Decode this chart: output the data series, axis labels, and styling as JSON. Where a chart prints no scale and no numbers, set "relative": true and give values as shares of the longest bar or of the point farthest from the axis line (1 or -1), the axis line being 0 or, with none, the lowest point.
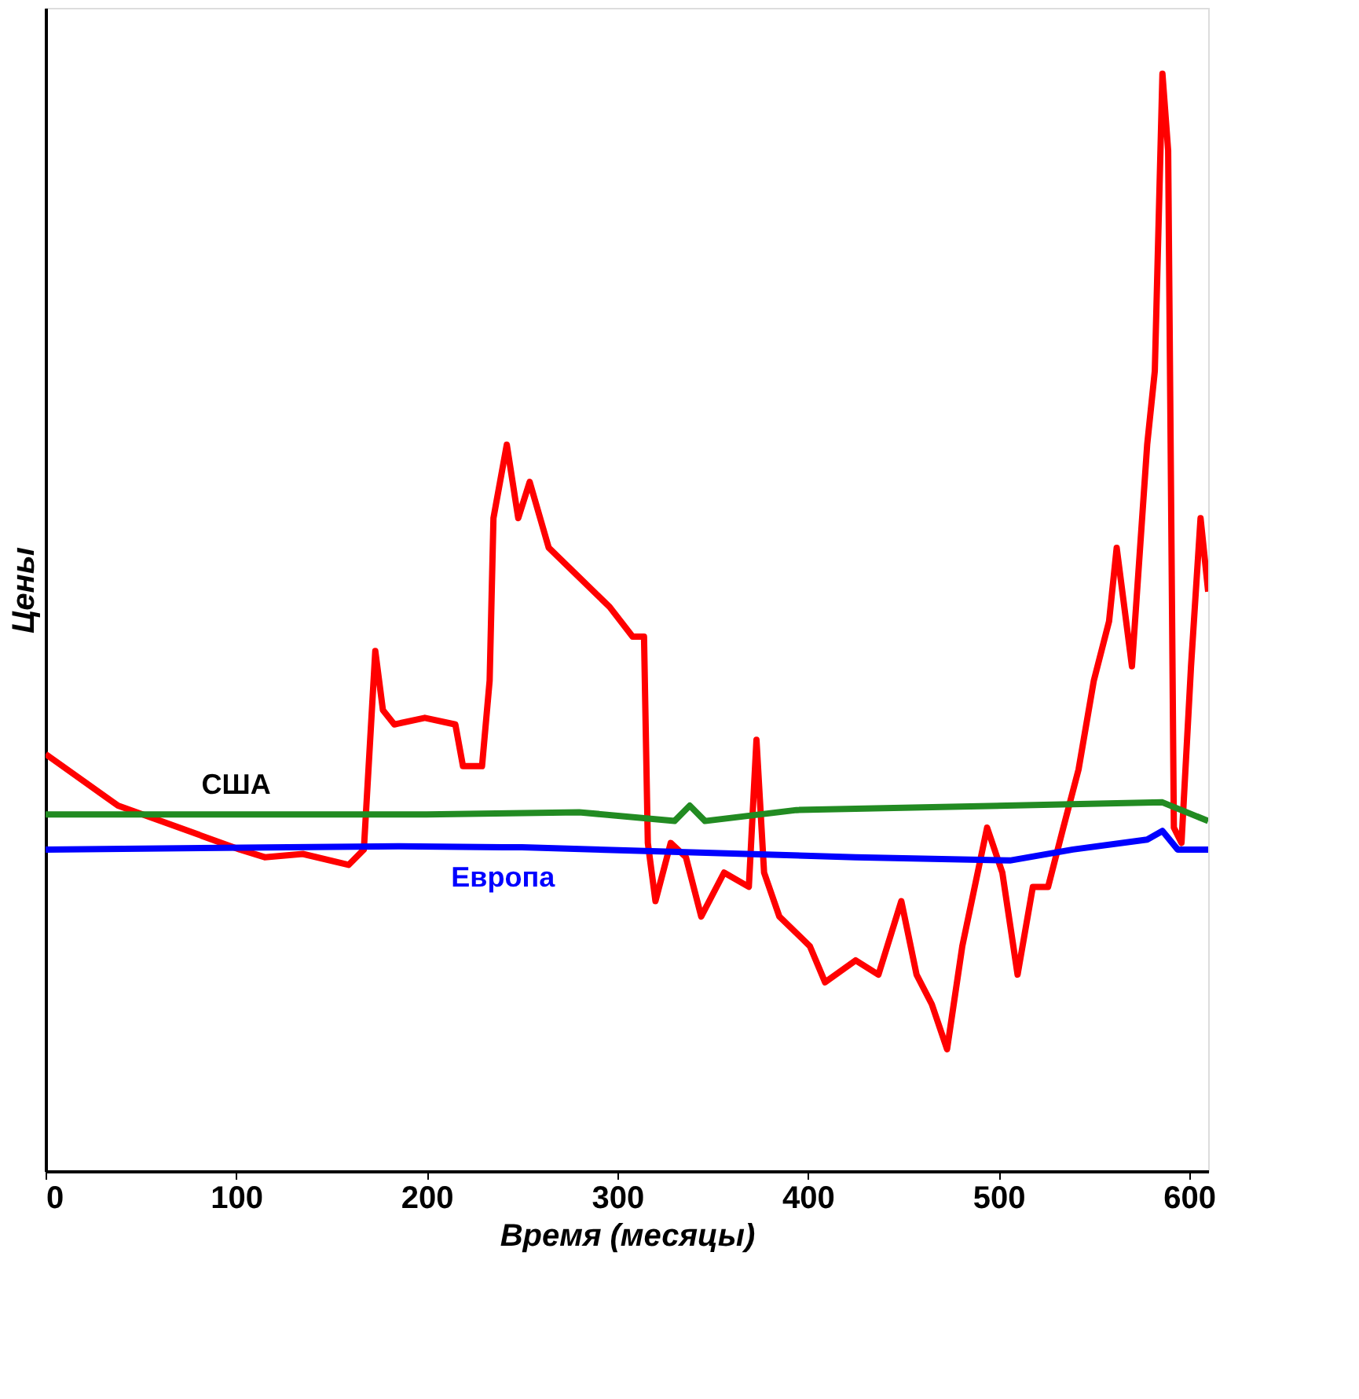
{
  "chart_data": {
    "type": "line",
    "xlabel": "Время (месяцы)",
    "ylabel": "Цены",
    "relative": true,
    "grid": false,
    "legend": false,
    "xlim": [
      0,
      610
    ],
    "xticks": [
      0,
      100,
      200,
      300,
      400,
      500,
      600
    ],
    "series": [
      {
        "color": "#ff0000",
        "x": [
          0,
          38,
          102,
          115,
          135,
          159,
          167,
          173,
          177,
          183,
          199,
          215,
          219,
          229,
          233,
          235,
          242,
          248,
          254,
          264,
          280,
          296,
          308,
          314,
          316,
          320,
          328,
          336,
          344,
          356,
          369,
          373,
          377,
          385,
          401,
          409,
          425,
          437,
          449,
          457,
          465,
          473,
          481,
          494,
          502,
          510,
          518,
          526,
          534,
          542,
          550,
          558,
          562,
          570,
          578,
          582,
          586,
          589,
          592,
          596,
          601,
          606,
          610
        ],
        "values": [
          0.38,
          0.333,
          0.293,
          0.286,
          0.289,
          0.279,
          0.293,
          0.474,
          0.42,
          0.407,
          0.413,
          0.407,
          0.369,
          0.369,
          0.447,
          0.595,
          0.662,
          0.595,
          0.628,
          0.568,
          0.541,
          0.514,
          0.487,
          0.487,
          0.299,
          0.246,
          0.299,
          0.286,
          0.232,
          0.272,
          0.259,
          0.393,
          0.272,
          0.232,
          0.205,
          0.172,
          0.192,
          0.179,
          0.246,
          0.179,
          0.152,
          0.111,
          0.205,
          0.313,
          0.272,
          0.179,
          0.259,
          0.259,
          0.313,
          0.366,
          0.447,
          0.501,
          0.568,
          0.46,
          0.662,
          0.729,
          1.0,
          0.93,
          0.313,
          0.299,
          0.46,
          0.595,
          0.528
        ]
      },
      {
        "name": "США",
        "color": "#228b22",
        "x": [
          0,
          100,
          200,
          280,
          330,
          338,
          346,
          394,
          586,
          610
        ],
        "values": [
          0.325,
          0.325,
          0.325,
          0.327,
          0.319,
          0.333,
          0.319,
          0.329,
          0.336,
          0.319
        ]
      },
      {
        "name": "Европа",
        "color": "#0000ff",
        "x": [
          0,
          185,
          240,
          250,
          425,
          506,
          539,
          578,
          586,
          594,
          610
        ],
        "values": [
          0.293,
          0.296,
          0.295,
          0.295,
          0.286,
          0.283,
          0.293,
          0.302,
          0.31,
          0.293,
          0.293
        ]
      }
    ]
  }
}
